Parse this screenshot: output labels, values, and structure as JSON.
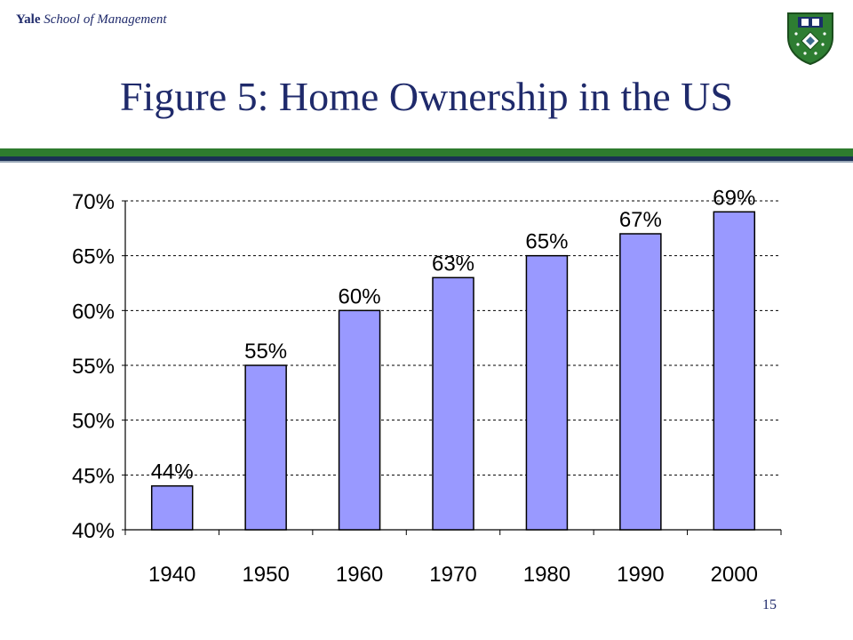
{
  "header": {
    "brand_yale": "Yale",
    "brand_school": "School of Management",
    "shield_icon": "yale-som-shield-icon"
  },
  "slide": {
    "title": "Figure 5: Home Ownership in the US",
    "page_number": "15"
  },
  "colors": {
    "title": "#1f2a6b",
    "bar_fill": "#9999ff",
    "bar_stroke": "#000000",
    "divider_green": "#2e7b2e",
    "divider_dark": "#1a2f54"
  },
  "chart_data": {
    "type": "bar",
    "title": "",
    "xlabel": "",
    "ylabel": "",
    "categories": [
      "1940",
      "1950",
      "1960",
      "1970",
      "1980",
      "1990",
      "2000"
    ],
    "values": [
      44,
      55,
      60,
      63,
      65,
      67,
      69
    ],
    "data_labels": [
      "44%",
      "55%",
      "60%",
      "63%",
      "65%",
      "67%",
      "69%"
    ],
    "ylim": [
      40,
      70
    ],
    "yticks": [
      40,
      45,
      50,
      55,
      60,
      65,
      70
    ],
    "ytick_labels": [
      "40%",
      "45%",
      "50%",
      "55%",
      "60%",
      "65%",
      "70%"
    ],
    "grid": "horizontal dashed",
    "legend": "none"
  }
}
